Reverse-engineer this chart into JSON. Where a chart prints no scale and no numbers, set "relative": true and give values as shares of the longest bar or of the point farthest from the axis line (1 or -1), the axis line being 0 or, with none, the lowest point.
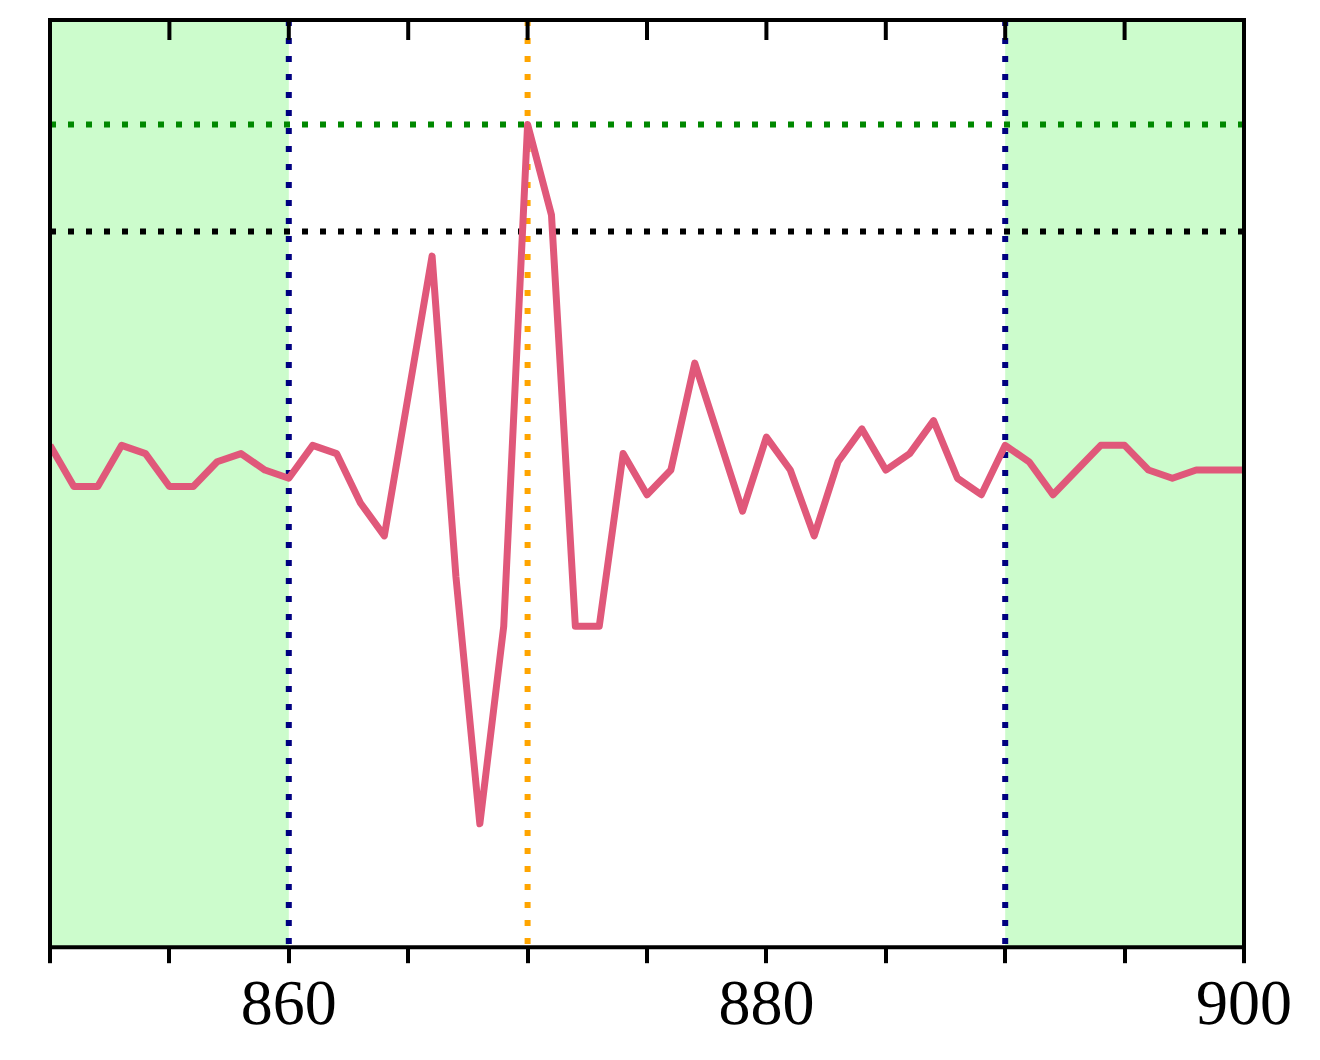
{
  "chart_data": {
    "type": "line",
    "relative": true,
    "grid": false,
    "legend": false,
    "marker": "none",
    "line_style": "solid",
    "x": [
      850,
      851,
      852,
      853,
      854,
      855,
      856,
      857,
      858,
      859,
      860,
      861,
      862,
      863,
      864,
      865,
      866,
      867,
      868,
      869,
      870,
      871,
      872,
      873,
      874,
      875,
      876,
      877,
      878,
      879,
      880,
      881,
      882,
      883,
      884,
      885,
      886,
      887,
      888,
      889,
      890,
      891,
      892,
      893,
      894,
      895,
      896,
      897,
      898,
      899,
      900
    ],
    "series": [
      {
        "color": "#e0587a",
        "values": [
          0.61,
          0.56,
          0.56,
          0.61,
          0.6,
          0.56,
          0.56,
          0.59,
          0.6,
          0.58,
          0.57,
          0.61,
          0.6,
          0.54,
          0.5,
          0.67,
          0.84,
          0.45,
          0.15,
          0.39,
          1,
          0.89,
          0.39,
          0.39,
          0.6,
          0.55,
          0.58,
          0.71,
          0.62,
          0.53,
          0.62,
          0.58,
          0.5,
          0.59,
          0.63,
          0.58,
          0.6,
          0.64,
          0.57,
          0.55,
          0.61,
          0.59,
          0.55,
          0.58,
          0.61,
          0.61,
          0.58,
          0.57,
          0.58,
          0.58,
          0.58
        ]
      }
    ],
    "xlim": [
      850,
      900
    ],
    "xticks": [
      {
        "value": 850,
        "label": null
      },
      {
        "value": 855,
        "label": null
      },
      860,
      {
        "value": 865,
        "label": null
      },
      {
        "value": 870,
        "label": null
      },
      {
        "value": 875,
        "label": null
      },
      880,
      {
        "value": 885,
        "label": null
      },
      {
        "value": 890,
        "label": null
      },
      {
        "value": 895,
        "label": null
      },
      900
    ],
    "bands": [
      {
        "axis": "x",
        "from": 850,
        "to": 860,
        "color": "#ccfccc"
      },
      {
        "axis": "x",
        "from": 890,
        "to": 900,
        "color": "#ccfccc"
      }
    ],
    "ref_lines": [
      {
        "axis": "x",
        "value": 860,
        "color": "#000080",
        "line_style": "dotted"
      },
      {
        "axis": "x",
        "value": 890,
        "color": "#000080",
        "line_style": "dotted"
      },
      {
        "axis": "x",
        "value": 870,
        "color": "#ffa500",
        "line_style": "dotted"
      },
      {
        "axis": "y",
        "value": 1,
        "color": "#008800",
        "line_style": "dotted"
      },
      {
        "axis": "y",
        "value": 0.87,
        "color": "#000000",
        "line_style": "dotted"
      }
    ]
  }
}
